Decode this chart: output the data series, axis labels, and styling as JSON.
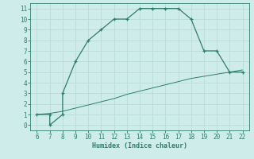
{
  "xlabel": "Humidex (Indice chaleur)",
  "line1_x": [
    6,
    7,
    7,
    8,
    8,
    9,
    10,
    11,
    12,
    13,
    14,
    15,
    16,
    17,
    18,
    19,
    20,
    21,
    22
  ],
  "line1_y": [
    1,
    1,
    0,
    1,
    3,
    6,
    8,
    9,
    10,
    10,
    11,
    11,
    11,
    11,
    10,
    7,
    7,
    5,
    5
  ],
  "line2_x": [
    6,
    7,
    8,
    9,
    10,
    11,
    12,
    13,
    14,
    15,
    16,
    17,
    18,
    19,
    20,
    21,
    22
  ],
  "line2_y": [
    1,
    1.1,
    1.3,
    1.6,
    1.9,
    2.2,
    2.5,
    2.9,
    3.2,
    3.5,
    3.8,
    4.1,
    4.4,
    4.6,
    4.8,
    5.0,
    5.2
  ],
  "line_color": "#2e7d6e",
  "bg_color": "#ceecea",
  "grid_color": "#b8dcd9",
  "xlim": [
    5.5,
    22.5
  ],
  "ylim": [
    -0.5,
    11.5
  ],
  "xticks": [
    6,
    7,
    8,
    9,
    10,
    11,
    12,
    13,
    14,
    15,
    16,
    17,
    18,
    19,
    20,
    21,
    22
  ],
  "yticks": [
    0,
    1,
    2,
    3,
    4,
    5,
    6,
    7,
    8,
    9,
    10,
    11
  ]
}
